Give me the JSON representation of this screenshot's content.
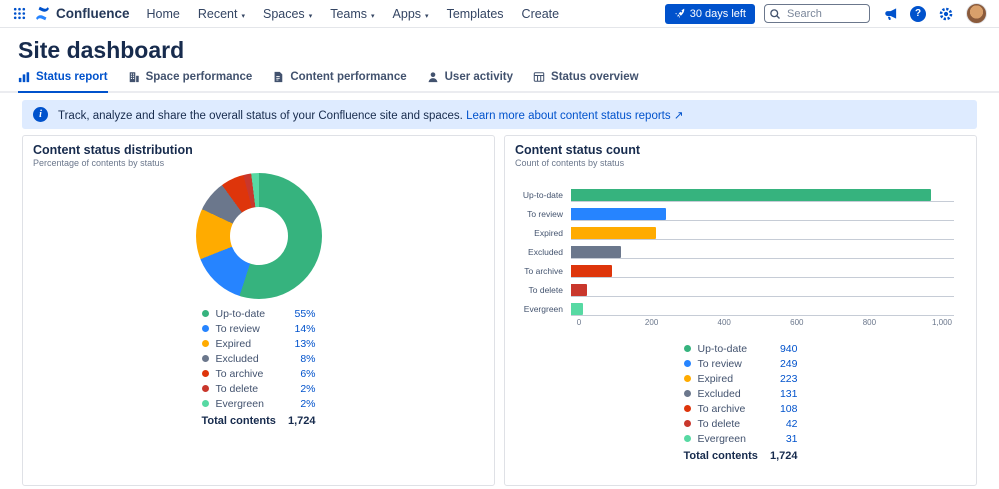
{
  "nav": {
    "brand": "Confluence",
    "items": [
      {
        "label": "Home",
        "chevron": false
      },
      {
        "label": "Recent",
        "chevron": true
      },
      {
        "label": "Spaces",
        "chevron": true
      },
      {
        "label": "Teams",
        "chevron": true
      },
      {
        "label": "Apps",
        "chevron": true
      },
      {
        "label": "Templates",
        "chevron": false
      },
      {
        "label": "Create",
        "chevron": false
      }
    ],
    "trial_label": "30 days left",
    "search_placeholder": "Search"
  },
  "page": {
    "title": "Site dashboard"
  },
  "tabs": [
    {
      "label": "Status report",
      "icon": "bar-chart-icon",
      "active": true
    },
    {
      "label": "Space performance",
      "icon": "building-icon",
      "active": false
    },
    {
      "label": "Content performance",
      "icon": "document-icon",
      "active": false
    },
    {
      "label": "User activity",
      "icon": "user-icon",
      "active": false
    },
    {
      "label": "Status overview",
      "icon": "table-icon",
      "active": false
    }
  ],
  "banner": {
    "text": "Track, analyze and share the overall status of your Confluence site and spaces.",
    "link_text": "Learn more about content status reports ↗"
  },
  "colors": {
    "accent": "#0052CC",
    "banner_background": "#DEEBFF"
  },
  "chart_data": [
    {
      "type": "pie",
      "title": "Content status distribution",
      "subtitle": "Percentage of contents by status",
      "categories": [
        "Up-to-date",
        "To review",
        "Expired",
        "Excluded",
        "To archive",
        "To delete",
        "Evergreen"
      ],
      "values": [
        55,
        14,
        13,
        8,
        6,
        2,
        2
      ],
      "value_suffix": "%",
      "colors": [
        "#36B37E",
        "#2684FF",
        "#FFAB00",
        "#6B778C",
        "#DE350B",
        "#C9372C",
        "#57D9A3"
      ],
      "total_label": "Total contents",
      "total_value": "1,724"
    },
    {
      "type": "bar",
      "title": "Content status count",
      "subtitle": "Count of contents by status",
      "categories": [
        "Up-to-date",
        "To review",
        "Expired",
        "Excluded",
        "To archive",
        "To delete",
        "Evergreen"
      ],
      "values": [
        940,
        249,
        223,
        131,
        108,
        42,
        31
      ],
      "colors": [
        "#36B37E",
        "#2684FF",
        "#FFAB00",
        "#6B778C",
        "#DE350B",
        "#C9372C",
        "#57D9A3"
      ],
      "orientation": "horizontal",
      "xlim": [
        0,
        1000
      ],
      "xticks": [
        {
          "v": 0,
          "label": "0"
        },
        {
          "v": 200,
          "label": "200"
        },
        {
          "v": 400,
          "label": "400"
        },
        {
          "v": 600,
          "label": "600"
        },
        {
          "v": 800,
          "label": "800"
        },
        {
          "v": 1000,
          "label": "1,000"
        }
      ],
      "total_label": "Total contents",
      "total_value": "1,724"
    }
  ]
}
